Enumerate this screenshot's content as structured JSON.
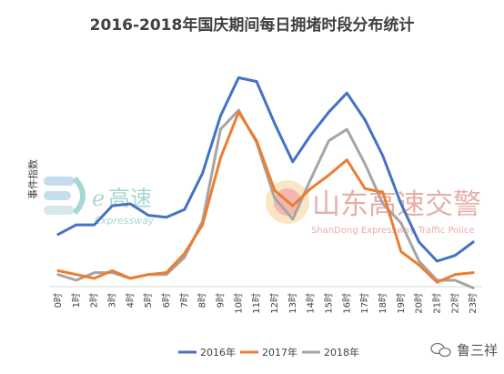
{
  "chart_data": {
    "type": "line",
    "title": "2016-2018年国庆期间每日拥堵时段分布统计",
    "ylabel": "事件指数",
    "xlabel": "",
    "ylim": [
      0,
      100
    ],
    "y_axis_tick_labels_shown": false,
    "grid": false,
    "legend_position": "bottom",
    "categories": [
      "0时",
      "1时",
      "2时",
      "3时",
      "4时",
      "5时",
      "6时",
      "7时",
      "8时",
      "9时",
      "10时",
      "11时",
      "12时",
      "13时",
      "14时",
      "15时",
      "16时",
      "17时",
      "18时",
      "19时",
      "20时",
      "21时",
      "22时",
      "23时"
    ],
    "series": [
      {
        "name": "2016年",
        "color": "#4472C4",
        "values": [
          24,
          29,
          29,
          39,
          40,
          34,
          33,
          37,
          56,
          86,
          106,
          104,
          82,
          62,
          76,
          88,
          98,
          84,
          65,
          40,
          20,
          10,
          13,
          20
        ]
      },
      {
        "name": "2017年",
        "color": "#ED7D31",
        "values": [
          5,
          3,
          1,
          5,
          1,
          3,
          4,
          14,
          29,
          64,
          88,
          73,
          47,
          39,
          48,
          55,
          63,
          48,
          46,
          15,
          8,
          -1,
          3,
          4
        ]
      },
      {
        "name": "2018年",
        "color": "#A5A5A5",
        "values": [
          3,
          0,
          4,
          4,
          1,
          3,
          3,
          12,
          31,
          79,
          89,
          72,
          43,
          32,
          53,
          73,
          79,
          61,
          40,
          30,
          10,
          0,
          0,
          -4
        ]
      }
    ]
  },
  "watermarks": {
    "logo1_text": "高速",
    "logo1_sub": "Expressway",
    "logo2_cn": "山东高速交警",
    "logo2_en": "ShanDong Expressway Traffic Police"
  },
  "footer": {
    "wechat_account": "鲁三祥",
    "wechat_icon": "wechat-icon"
  }
}
